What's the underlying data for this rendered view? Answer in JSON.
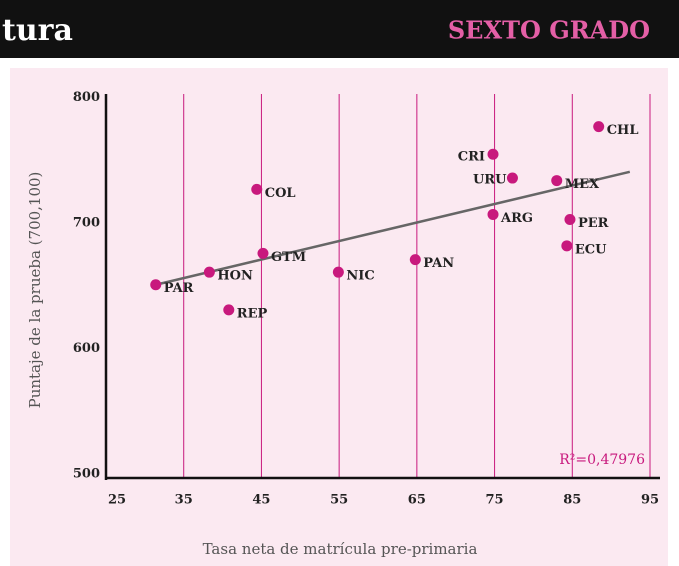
{
  "header": {
    "title": "tura",
    "grade": "SEXTO GRADO"
  },
  "chart_data": {
    "type": "scatter",
    "xlabel": "Tasa neta de matrícula pre-primaria",
    "ylabel": "Puntaje de la prueba (700,100)",
    "annotation": "R²=0,47976",
    "labels": [
      "CHL",
      "CRI",
      "URU",
      "MEX",
      "ARG",
      "PER",
      "ECU",
      "COL",
      "GTM",
      "NIC",
      "PAN",
      "HON",
      "PAR",
      "REP"
    ],
    "x": [
      88.4,
      74.8,
      77.3,
      83,
      74.8,
      84.7,
      84.3,
      44.4,
      45.2,
      54.9,
      64.8,
      38.3,
      31.4,
      40.8
    ],
    "y": [
      780,
      758,
      739,
      737,
      710,
      706,
      685,
      730,
      679,
      664,
      674,
      664,
      654,
      634
    ],
    "color": "#c8197d",
    "trendline": {
      "x": [
        31.4,
        92.4
      ],
      "y": [
        654,
        744
      ],
      "color": "#666666"
    },
    "xlim": [
      25,
      95
    ],
    "xticks": [
      25,
      35,
      45,
      55,
      65,
      75,
      85,
      95
    ],
    "ylim": [
      500,
      800
    ],
    "yticks": [
      500,
      600,
      700,
      800
    ],
    "grid": true
  }
}
